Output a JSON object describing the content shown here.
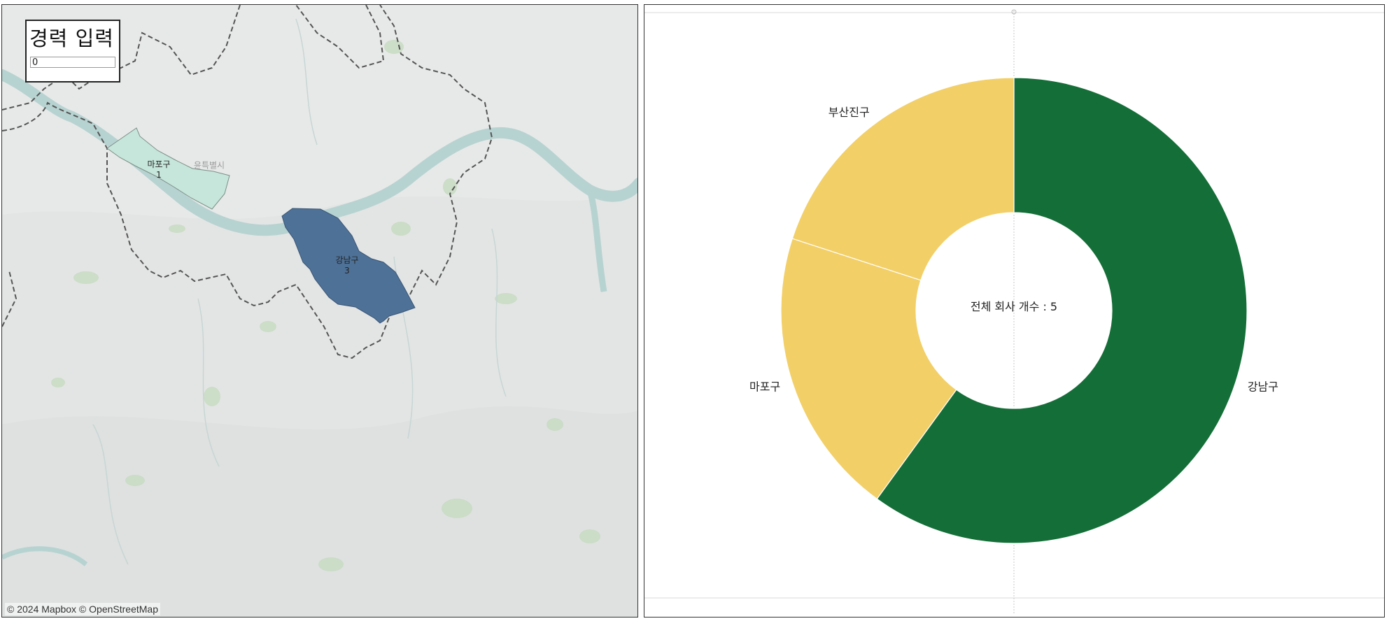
{
  "parameter": {
    "title": "경력 입력",
    "value": "0"
  },
  "map": {
    "attribution": "© 2024 Mapbox © OpenStreetMap",
    "place_labels": [
      "윤특별시"
    ],
    "regions": [
      {
        "name": "마포구",
        "count": "1",
        "fill": "#c6e6db"
      },
      {
        "name": "강남구",
        "count": "3",
        "fill": "#4e7197"
      }
    ]
  },
  "chart_data": {
    "type": "pie",
    "categories": [
      "강남구",
      "마포구",
      "부산진구"
    ],
    "values": [
      3,
      1,
      1
    ],
    "colors": [
      "#146e37",
      "#f2cf67",
      "#f2cf67"
    ],
    "center_label": "전체 회사 개수 : 5",
    "hole": "donut"
  }
}
